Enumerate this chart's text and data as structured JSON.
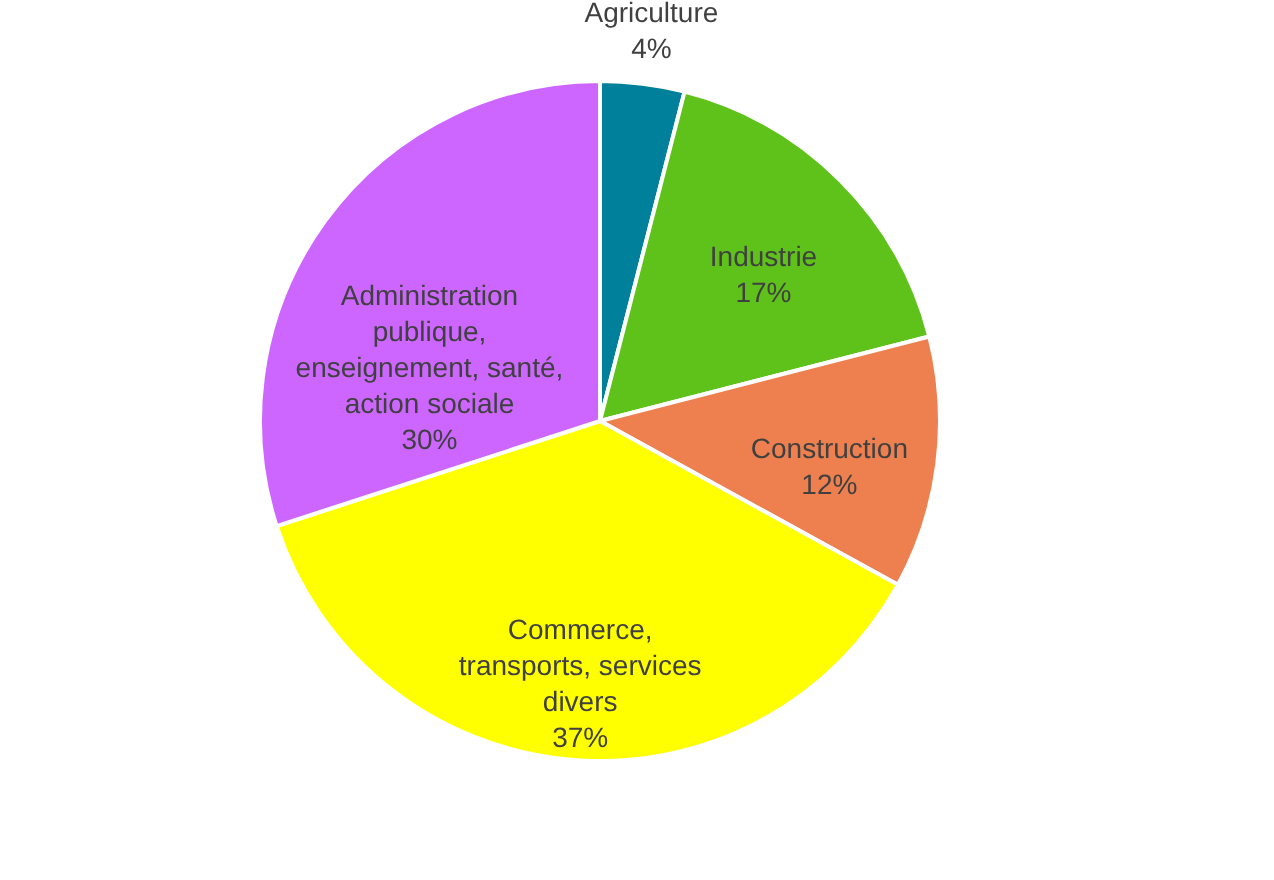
{
  "chart_data": {
    "type": "pie",
    "categories": [
      "Agriculture",
      "Industrie",
      "Construction",
      "Commerce, transports, services divers",
      "Administration publique, enseignement, santé, action sociale"
    ],
    "values": [
      4,
      17,
      12,
      37,
      30
    ],
    "value_labels": [
      "4%",
      "17%",
      "12%",
      "37%",
      "30%"
    ],
    "colors": [
      "#00809a",
      "#5fc21a",
      "#ee8050",
      "#ffff00",
      "#cc66ff"
    ],
    "legend": false
  }
}
